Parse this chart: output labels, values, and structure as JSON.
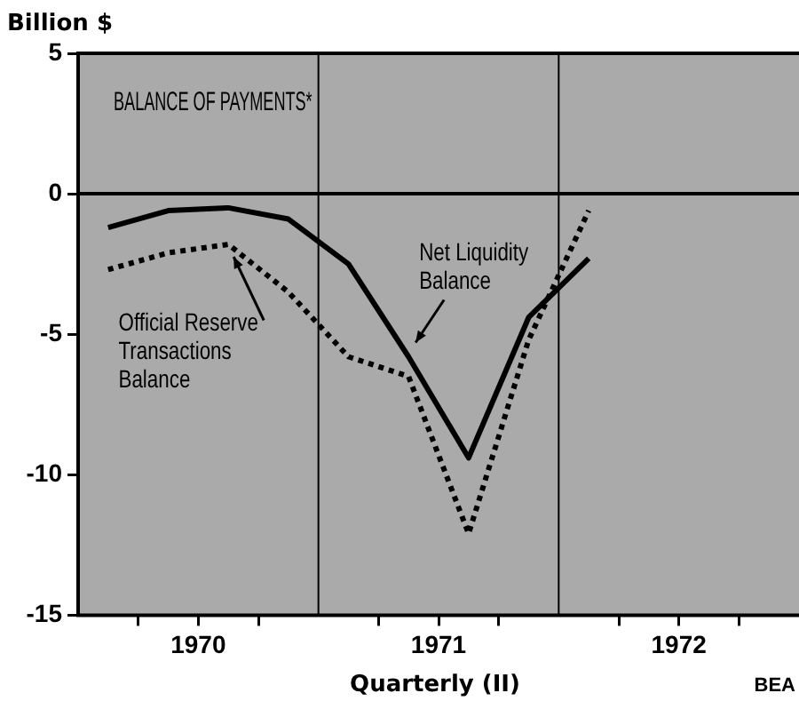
{
  "chart_data": {
    "type": "line",
    "title": "BALANCE OF PAYMENTS*",
    "ylabel": "Billion $",
    "xlabel": "Quarterly (II)",
    "x": [
      1970.125,
      1970.375,
      1970.625,
      1970.875,
      1971.125,
      1971.375,
      1971.625,
      1971.875,
      1972.125
    ],
    "series": [
      {
        "name": "Net Liquidity Balance",
        "color": "#000000",
        "line_style": "solid",
        "values": [
          -1.2,
          -0.6,
          -0.5,
          -0.9,
          -2.5,
          -5.8,
          -9.4,
          -4.4,
          -2.3
        ]
      },
      {
        "name": "Official Reserve Transactions Balance",
        "color": "#000000",
        "line_style": "dotted",
        "values": [
          -2.7,
          -2.1,
          -1.8,
          -3.5,
          -5.8,
          -6.5,
          -12.1,
          -5.2,
          -0.6
        ]
      }
    ],
    "xlim": [
      1970,
      1973
    ],
    "xticks": [
      {
        "value": 1970.25,
        "label": null
      },
      {
        "value": 1970.5,
        "label": "1970"
      },
      {
        "value": 1970.75,
        "label": null
      },
      {
        "value": 1971.25,
        "label": null
      },
      {
        "value": 1971.5,
        "label": "1971"
      },
      {
        "value": 1971.75,
        "label": null
      },
      {
        "value": 1972.25,
        "label": null
      },
      {
        "value": 1972.5,
        "label": "1972"
      },
      {
        "value": 1972.75,
        "label": null
      }
    ],
    "ylim": [
      -15,
      5
    ],
    "yticks": [
      -15,
      -10,
      -5,
      0,
      5
    ],
    "ref_lines": [
      {
        "axis": "y",
        "value": 0,
        "color": "#000000"
      },
      {
        "axis": "x",
        "value": 1971,
        "color": "#000000"
      },
      {
        "axis": "x",
        "value": 1972,
        "color": "#000000"
      }
    ],
    "annotations": [
      "BEA"
    ],
    "grid": false,
    "legend": false,
    "marker": "none"
  }
}
